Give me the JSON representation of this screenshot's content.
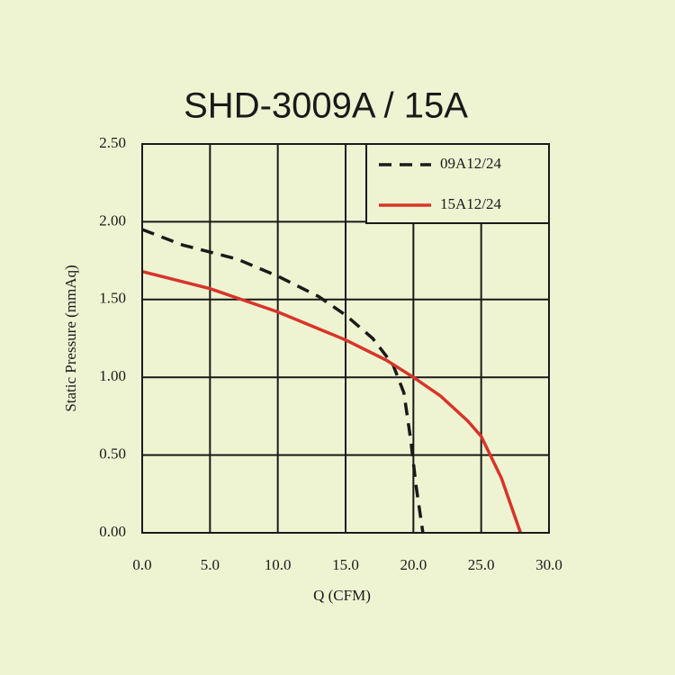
{
  "chart_data": {
    "type": "line",
    "title": "SHD-3009A / 15A",
    "x_label": "Q (CFM)",
    "y_label": "Static Pressure (mmAq)",
    "xlim": [
      0,
      30
    ],
    "ylim": [
      0,
      2.5
    ],
    "xticks": [
      {
        "value": 0,
        "label": "0.0"
      },
      {
        "value": 5,
        "label": "5.0"
      },
      {
        "value": 10,
        "label": "10.0"
      },
      {
        "value": 15,
        "label": "15.0"
      },
      {
        "value": 20,
        "label": "20.0"
      },
      {
        "value": 25,
        "label": "25.0"
      },
      {
        "value": 30,
        "label": "30.0"
      }
    ],
    "yticks": [
      {
        "value": 0,
        "label": "0.00"
      },
      {
        "value": 0.5,
        "label": "0.50"
      },
      {
        "value": 1,
        "label": "1.00"
      },
      {
        "value": 1.5,
        "label": "1.50"
      },
      {
        "value": 2,
        "label": "2.00"
      },
      {
        "value": 2.5,
        "label": "2.50"
      }
    ],
    "grid": true,
    "legend": "top-right",
    "series": [
      {
        "name": "09A12/24",
        "color": "#1a1a1a",
        "style": "dashed",
        "x": [
          0,
          3,
          7,
          10,
          13,
          15,
          17,
          18.5,
          19.3,
          19.8,
          20.2,
          20.7
        ],
        "values": [
          1.95,
          1.85,
          1.76,
          1.65,
          1.52,
          1.4,
          1.25,
          1.08,
          0.9,
          0.6,
          0.3,
          0
        ]
      },
      {
        "name": "15A12/24",
        "color": "#d8342a",
        "style": "solid",
        "x": [
          0,
          5,
          10,
          15,
          18,
          20,
          22,
          24,
          25,
          26.5,
          27.9
        ],
        "values": [
          1.68,
          1.57,
          1.42,
          1.24,
          1.11,
          1.0,
          0.88,
          0.72,
          0.62,
          0.35,
          0
        ]
      }
    ]
  }
}
